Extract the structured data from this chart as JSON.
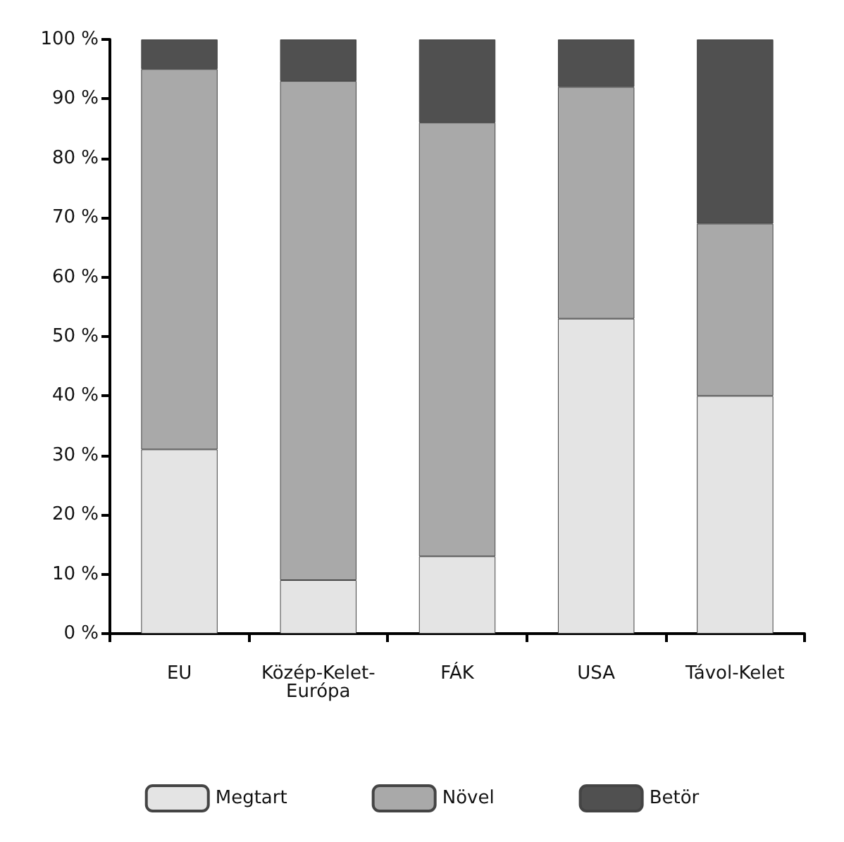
{
  "chart_data": {
    "type": "bar",
    "stacked": true,
    "categories": [
      "EU",
      "Közép-Kelet-Európa",
      "FÁK",
      "USA",
      "Távol-Kelet"
    ],
    "series": [
      {
        "name": "Megtart",
        "color": "#e4e4e4",
        "values": [
          31,
          9,
          13,
          53,
          40
        ]
      },
      {
        "name": "Növel",
        "color": "#a9a9a9",
        "values": [
          64,
          84,
          73,
          39,
          29
        ]
      },
      {
        "name": "Betör",
        "color": "#505050",
        "values": [
          5,
          7,
          14,
          8,
          31
        ]
      }
    ],
    "ylim": [
      0,
      100
    ],
    "yticks": [
      {
        "value": 0,
        "label": "0 %"
      },
      {
        "value": 10,
        "label": "10 %"
      },
      {
        "value": 20,
        "label": "20 %"
      },
      {
        "value": 30,
        "label": "30 %"
      },
      {
        "value": 40,
        "label": "40 %"
      },
      {
        "value": 50,
        "label": "50 %"
      },
      {
        "value": 60,
        "label": "60 %"
      },
      {
        "value": 70,
        "label": "70 %"
      },
      {
        "value": 80,
        "label": "80 %"
      },
      {
        "value": 90,
        "label": "90 %"
      },
      {
        "value": 100,
        "label": "100 %"
      }
    ],
    "grid": false,
    "legend": "bottom"
  }
}
